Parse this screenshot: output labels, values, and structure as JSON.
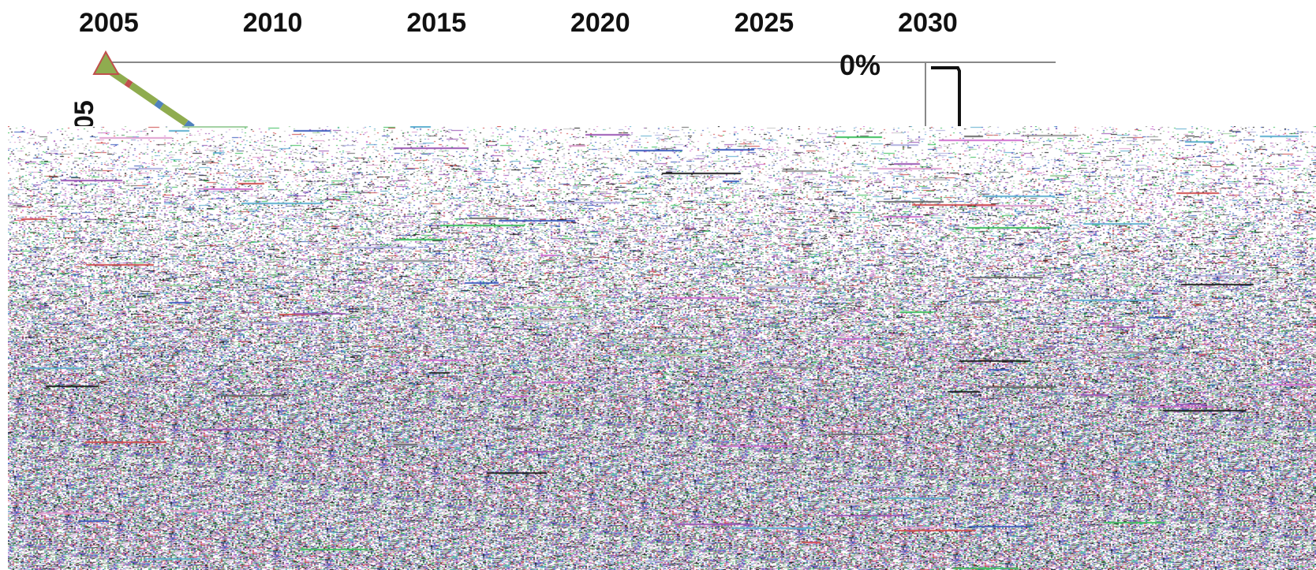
{
  "chart_data": {
    "type": "line",
    "title": "",
    "xlabel": "",
    "ylabel": "",
    "x_ticks": [
      "2005",
      "2010",
      "2015",
      "2020",
      "2025",
      "2030"
    ],
    "xlim": [
      2005,
      2035
    ],
    "y_tick_visible": "0%",
    "y_label_fragment": "05",
    "grid": false,
    "colors": {
      "axis": "#888888",
      "marker": "#8fac4f",
      "marker_edge": "#c0504d",
      "series_dash_a": "#8fac4f",
      "series_dash_b": "#c0504d",
      "series_dash_c": "#4f81bd",
      "bracket": "#111111"
    },
    "series": [
      {
        "points": [
          {
            "x": 2005,
            "y": 0
          }
        ]
      }
    ],
    "obscured_region": "pixel-noise overlay covering lower plot area"
  }
}
